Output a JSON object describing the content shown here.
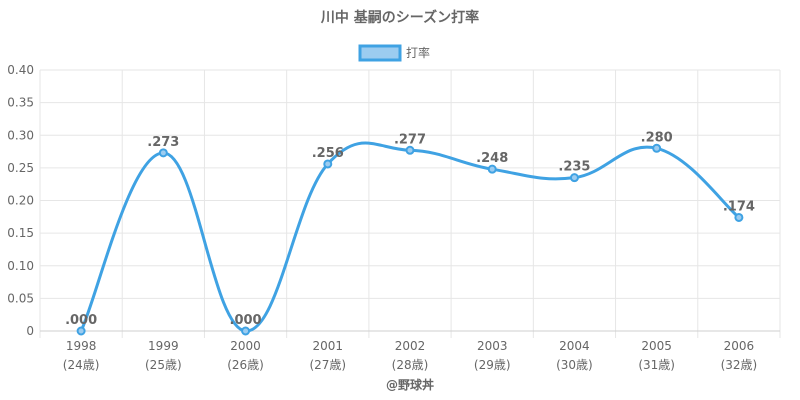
{
  "chart_data": {
    "type": "line",
    "title": "川中 基嗣のシーズン打率",
    "xlabel": "@野球丼",
    "ylabel": "",
    "categories": [
      [
        "1998",
        "(24歳)"
      ],
      [
        "1999",
        "(25歳)"
      ],
      [
        "2000",
        "(26歳)"
      ],
      [
        "2001",
        "(27歳)"
      ],
      [
        "2002",
        "(28歳)"
      ],
      [
        "2003",
        "(29歳)"
      ],
      [
        "2004",
        "(30歳)"
      ],
      [
        "2005",
        "(31歳)"
      ],
      [
        "2006",
        "(32歳)"
      ]
    ],
    "series": [
      {
        "name": "打率",
        "values": [
          0.0,
          0.273,
          0.0,
          0.256,
          0.277,
          0.248,
          0.235,
          0.28,
          0.174
        ],
        "labels": [
          ".000",
          ".273",
          ".000",
          ".256",
          ".277",
          ".248",
          ".235",
          ".280",
          ".174"
        ],
        "color": "#3fa2e3",
        "fill": "#9cccf0"
      }
    ],
    "ylim": [
      0,
      0.4
    ],
    "yticks": [
      0,
      0.05,
      0.1,
      0.15,
      0.2,
      0.25,
      0.3,
      0.35,
      0.4
    ],
    "ytick_labels": [
      "0",
      "0.05",
      "0.10",
      "0.15",
      "0.20",
      "0.25",
      "0.30",
      "0.35",
      "0.40"
    ],
    "grid": true,
    "legend": "top-center"
  }
}
